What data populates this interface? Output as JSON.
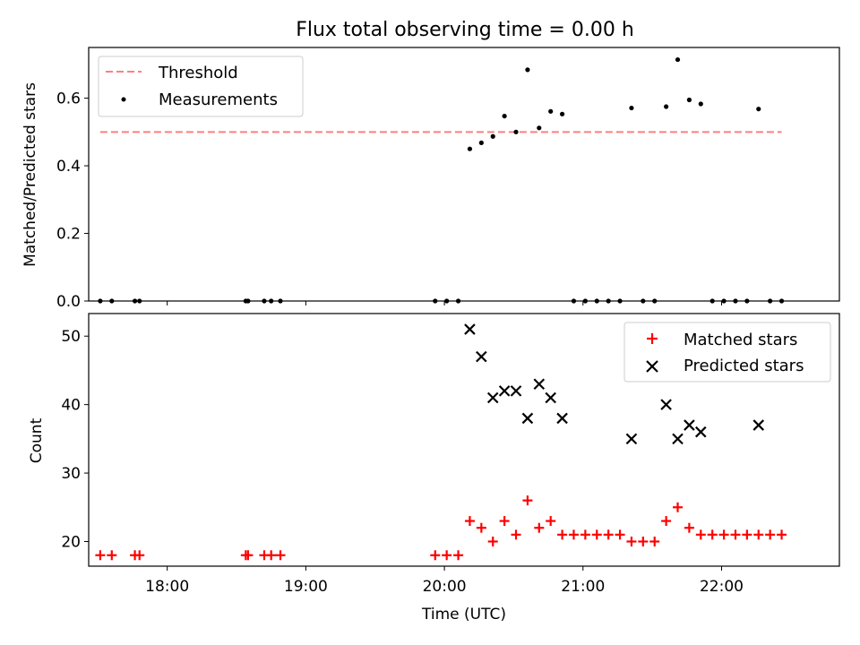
{
  "figure": {
    "title": "Flux total observing time = 0.00 h"
  },
  "chart_data": [
    {
      "type": "scatter",
      "ylabel": "Matched/Predicted stars",
      "xlabel": "",
      "xlim": [
        "17:26",
        "22:51"
      ],
      "ylim": [
        0,
        0.75
      ],
      "yticks": [
        "0.0",
        "0.2",
        "0.4",
        "0.6"
      ],
      "grid": false,
      "legend_position": "top-left",
      "threshold": {
        "name": "Threshold",
        "value": 0.5,
        "x_start": "17:31",
        "x_end": "22:26",
        "color": "#ff7f7f",
        "style": "dashed"
      },
      "series": [
        {
          "name": "Measurements",
          "marker": "dot",
          "color": "#000000",
          "points": [
            {
              "x": "17:31",
              "y": 0
            },
            {
              "x": "17:36",
              "y": 0
            },
            {
              "x": "17:46",
              "y": 0
            },
            {
              "x": "17:48",
              "y": 0
            },
            {
              "x": "18:34",
              "y": 0
            },
            {
              "x": "18:35",
              "y": 0
            },
            {
              "x": "18:42",
              "y": 0
            },
            {
              "x": "18:45",
              "y": 0
            },
            {
              "x": "18:49",
              "y": 0
            },
            {
              "x": "19:56",
              "y": 0
            },
            {
              "x": "20:01",
              "y": 0
            },
            {
              "x": "20:06",
              "y": 0
            },
            {
              "x": "20:11",
              "y": 0.45
            },
            {
              "x": "20:16",
              "y": 0.468
            },
            {
              "x": "20:21",
              "y": 0.487
            },
            {
              "x": "20:26",
              "y": 0.547
            },
            {
              "x": "20:31",
              "y": 0.5
            },
            {
              "x": "20:36",
              "y": 0.684
            },
            {
              "x": "20:41",
              "y": 0.512
            },
            {
              "x": "20:46",
              "y": 0.561
            },
            {
              "x": "20:51",
              "y": 0.553
            },
            {
              "x": "20:56",
              "y": 0
            },
            {
              "x": "21:01",
              "y": 0
            },
            {
              "x": "21:06",
              "y": 0
            },
            {
              "x": "21:11",
              "y": 0
            },
            {
              "x": "21:16",
              "y": 0
            },
            {
              "x": "21:21",
              "y": 0.571
            },
            {
              "x": "21:26",
              "y": 0
            },
            {
              "x": "21:31",
              "y": 0
            },
            {
              "x": "21:36",
              "y": 0.575
            },
            {
              "x": "21:41",
              "y": 0.714
            },
            {
              "x": "21:46",
              "y": 0.595
            },
            {
              "x": "21:51",
              "y": 0.583
            },
            {
              "x": "21:56",
              "y": 0
            },
            {
              "x": "22:01",
              "y": 0
            },
            {
              "x": "22:06",
              "y": 0
            },
            {
              "x": "22:11",
              "y": 0
            },
            {
              "x": "22:16",
              "y": 0.568
            },
            {
              "x": "22:21",
              "y": 0
            },
            {
              "x": "22:26",
              "y": 0
            }
          ]
        }
      ]
    },
    {
      "type": "scatter",
      "xlabel": "Time (UTC)",
      "ylabel": "Count",
      "xlim": [
        "17:26",
        "22:51"
      ],
      "ylim": [
        16.4,
        53.3
      ],
      "xticks": [
        "18:00",
        "19:00",
        "20:00",
        "21:00",
        "22:00"
      ],
      "yticks": [
        "20",
        "30",
        "40",
        "50"
      ],
      "grid": false,
      "legend_position": "top-right",
      "series": [
        {
          "name": "Matched stars",
          "marker": "plus",
          "color": "#ff0000",
          "points": [
            {
              "x": "17:31",
              "y": 18
            },
            {
              "x": "17:36",
              "y": 18
            },
            {
              "x": "17:46",
              "y": 18
            },
            {
              "x": "17:48",
              "y": 18
            },
            {
              "x": "18:34",
              "y": 18
            },
            {
              "x": "18:35",
              "y": 18
            },
            {
              "x": "18:42",
              "y": 18
            },
            {
              "x": "18:45",
              "y": 18
            },
            {
              "x": "18:49",
              "y": 18
            },
            {
              "x": "19:56",
              "y": 18
            },
            {
              "x": "20:01",
              "y": 18
            },
            {
              "x": "20:06",
              "y": 18
            },
            {
              "x": "20:11",
              "y": 23
            },
            {
              "x": "20:16",
              "y": 22
            },
            {
              "x": "20:21",
              "y": 20
            },
            {
              "x": "20:26",
              "y": 23
            },
            {
              "x": "20:31",
              "y": 21
            },
            {
              "x": "20:36",
              "y": 26
            },
            {
              "x": "20:41",
              "y": 22
            },
            {
              "x": "20:46",
              "y": 23
            },
            {
              "x": "20:51",
              "y": 21
            },
            {
              "x": "20:56",
              "y": 21
            },
            {
              "x": "21:01",
              "y": 21
            },
            {
              "x": "21:06",
              "y": 21
            },
            {
              "x": "21:11",
              "y": 21
            },
            {
              "x": "21:16",
              "y": 21
            },
            {
              "x": "21:21",
              "y": 20
            },
            {
              "x": "21:26",
              "y": 20
            },
            {
              "x": "21:31",
              "y": 20
            },
            {
              "x": "21:36",
              "y": 23
            },
            {
              "x": "21:41",
              "y": 25
            },
            {
              "x": "21:46",
              "y": 22
            },
            {
              "x": "21:51",
              "y": 21
            },
            {
              "x": "21:56",
              "y": 21
            },
            {
              "x": "22:01",
              "y": 21
            },
            {
              "x": "22:06",
              "y": 21
            },
            {
              "x": "22:11",
              "y": 21
            },
            {
              "x": "22:16",
              "y": 21
            },
            {
              "x": "22:21",
              "y": 21
            },
            {
              "x": "22:26",
              "y": 21
            }
          ]
        },
        {
          "name": "Predicted stars",
          "marker": "x",
          "color": "#000000",
          "points": [
            {
              "x": "20:11",
              "y": 51
            },
            {
              "x": "20:16",
              "y": 47
            },
            {
              "x": "20:21",
              "y": 41
            },
            {
              "x": "20:26",
              "y": 42
            },
            {
              "x": "20:31",
              "y": 42
            },
            {
              "x": "20:36",
              "y": 38
            },
            {
              "x": "20:41",
              "y": 43
            },
            {
              "x": "20:46",
              "y": 41
            },
            {
              "x": "20:51",
              "y": 38
            },
            {
              "x": "21:21",
              "y": 35
            },
            {
              "x": "21:36",
              "y": 40
            },
            {
              "x": "21:41",
              "y": 35
            },
            {
              "x": "21:46",
              "y": 37
            },
            {
              "x": "21:51",
              "y": 36
            },
            {
              "x": "22:16",
              "y": 37
            }
          ]
        }
      ]
    }
  ]
}
